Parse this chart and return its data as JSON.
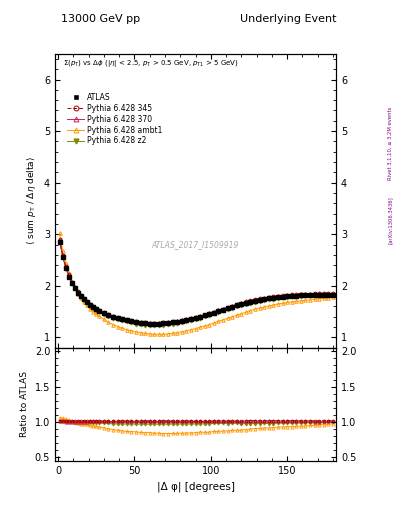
{
  "title_left": "13000 GeV pp",
  "title_right": "Underlying Event",
  "annotation": "ATLAS_2017_I1509919",
  "right_label": "Rivet 3.1.10, ≥ 3.2M events",
  "arxiv_label": "[arXiv:1306.3436]",
  "subtitle": "Σ(p_{T}) vs Δφ (|η| < 2.5, p_{T} > 0.5 GeV, p_{T1} > 5 GeV)",
  "xlabel": "|Δ φ| [degrees]",
  "ylabel_main": "⟨ sum p_{T} / Δη delta⟩",
  "ylabel_ratio": "Ratio to ATLAS",
  "ylim_main": [
    0.8,
    6.5
  ],
  "ylim_ratio": [
    0.45,
    2.05
  ],
  "yticks_main": [
    1,
    2,
    3,
    4,
    5,
    6
  ],
  "yticks_ratio": [
    0.5,
    1.0,
    1.5,
    2.0
  ],
  "xlim": [
    -2,
    182
  ],
  "xticks": [
    0,
    50,
    100,
    150
  ],
  "colors": {
    "ATLAS": "#000000",
    "345": "#aa0000",
    "370": "#cc2255",
    "ambt1": "#ff9900",
    "z2": "#888800"
  },
  "x_main": [
    1,
    3,
    5,
    7,
    9,
    11,
    13,
    15,
    17,
    19,
    21,
    23,
    25,
    27,
    30,
    33,
    36,
    39,
    42,
    45,
    48,
    51,
    54,
    57,
    60,
    63,
    66,
    69,
    72,
    75,
    78,
    81,
    84,
    87,
    90,
    93,
    96,
    99,
    102,
    105,
    108,
    111,
    114,
    117,
    120,
    123,
    126,
    129,
    132,
    135,
    138,
    141,
    144,
    147,
    150,
    153,
    156,
    159,
    162,
    165,
    168,
    171,
    174,
    177,
    180
  ],
  "atlas_y": [
    2.85,
    2.55,
    2.35,
    2.18,
    2.05,
    1.96,
    1.87,
    1.8,
    1.74,
    1.68,
    1.63,
    1.59,
    1.55,
    1.52,
    1.47,
    1.43,
    1.4,
    1.37,
    1.35,
    1.33,
    1.31,
    1.29,
    1.28,
    1.27,
    1.26,
    1.26,
    1.26,
    1.27,
    1.28,
    1.29,
    1.3,
    1.32,
    1.34,
    1.36,
    1.38,
    1.4,
    1.43,
    1.46,
    1.48,
    1.51,
    1.54,
    1.57,
    1.59,
    1.62,
    1.65,
    1.67,
    1.69,
    1.71,
    1.73,
    1.74,
    1.76,
    1.77,
    1.78,
    1.79,
    1.8,
    1.81,
    1.81,
    1.82,
    1.82,
    1.82,
    1.83,
    1.83,
    1.83,
    1.83,
    1.83
  ],
  "p345_y": [
    2.9,
    2.6,
    2.38,
    2.22,
    2.08,
    1.98,
    1.9,
    1.83,
    1.77,
    1.71,
    1.65,
    1.61,
    1.57,
    1.54,
    1.49,
    1.45,
    1.42,
    1.39,
    1.37,
    1.35,
    1.33,
    1.31,
    1.3,
    1.29,
    1.28,
    1.28,
    1.28,
    1.29,
    1.3,
    1.31,
    1.32,
    1.34,
    1.36,
    1.38,
    1.4,
    1.42,
    1.44,
    1.47,
    1.5,
    1.53,
    1.56,
    1.59,
    1.61,
    1.64,
    1.67,
    1.7,
    1.72,
    1.74,
    1.76,
    1.77,
    1.79,
    1.8,
    1.81,
    1.82,
    1.83,
    1.84,
    1.84,
    1.85,
    1.85,
    1.85,
    1.86,
    1.86,
    1.86,
    1.86,
    1.86
  ],
  "p370_y": [
    2.87,
    2.57,
    2.36,
    2.19,
    2.06,
    1.97,
    1.88,
    1.81,
    1.75,
    1.69,
    1.64,
    1.6,
    1.56,
    1.53,
    1.48,
    1.44,
    1.41,
    1.38,
    1.36,
    1.34,
    1.32,
    1.3,
    1.29,
    1.28,
    1.27,
    1.27,
    1.27,
    1.28,
    1.29,
    1.3,
    1.31,
    1.33,
    1.35,
    1.37,
    1.39,
    1.41,
    1.44,
    1.47,
    1.5,
    1.53,
    1.56,
    1.58,
    1.61,
    1.64,
    1.66,
    1.69,
    1.71,
    1.73,
    1.75,
    1.76,
    1.78,
    1.79,
    1.8,
    1.81,
    1.82,
    1.83,
    1.83,
    1.84,
    1.84,
    1.84,
    1.84,
    1.84,
    1.85,
    1.85,
    1.85
  ],
  "pambt1_y": [
    3.02,
    2.68,
    2.44,
    2.24,
    2.08,
    1.96,
    1.85,
    1.76,
    1.68,
    1.62,
    1.55,
    1.5,
    1.45,
    1.41,
    1.35,
    1.29,
    1.25,
    1.21,
    1.18,
    1.15,
    1.13,
    1.11,
    1.09,
    1.08,
    1.07,
    1.06,
    1.06,
    1.06,
    1.07,
    1.08,
    1.09,
    1.11,
    1.13,
    1.15,
    1.17,
    1.2,
    1.22,
    1.25,
    1.28,
    1.31,
    1.34,
    1.37,
    1.4,
    1.43,
    1.46,
    1.49,
    1.52,
    1.55,
    1.57,
    1.59,
    1.61,
    1.63,
    1.65,
    1.66,
    1.68,
    1.69,
    1.7,
    1.71,
    1.72,
    1.73,
    1.74,
    1.75,
    1.76,
    1.77,
    1.78
  ],
  "pz2_y": [
    2.88,
    2.57,
    2.35,
    2.18,
    2.04,
    1.94,
    1.85,
    1.78,
    1.72,
    1.66,
    1.6,
    1.56,
    1.52,
    1.49,
    1.44,
    1.4,
    1.36,
    1.33,
    1.31,
    1.29,
    1.27,
    1.25,
    1.24,
    1.23,
    1.22,
    1.22,
    1.22,
    1.23,
    1.24,
    1.25,
    1.26,
    1.28,
    1.3,
    1.32,
    1.34,
    1.36,
    1.39,
    1.42,
    1.45,
    1.48,
    1.51,
    1.53,
    1.56,
    1.59,
    1.61,
    1.63,
    1.65,
    1.67,
    1.69,
    1.71,
    1.72,
    1.73,
    1.75,
    1.76,
    1.77,
    1.78,
    1.79,
    1.79,
    1.8,
    1.8,
    1.8,
    1.81,
    1.81,
    1.82,
    1.82
  ]
}
